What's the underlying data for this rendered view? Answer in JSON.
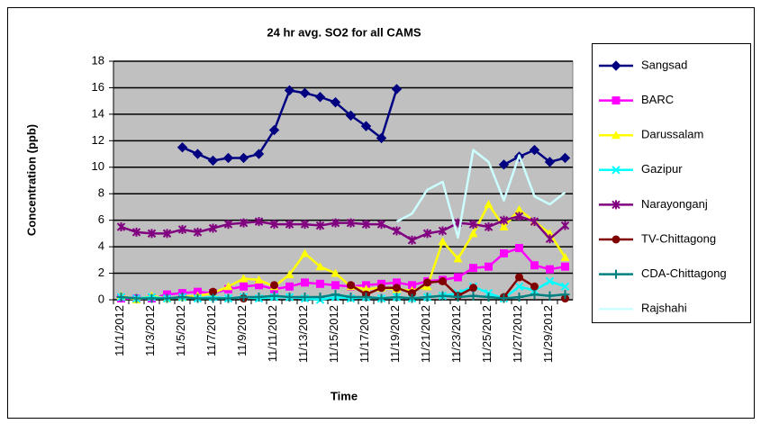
{
  "chart_data": {
    "type": "line",
    "title": "24 hr avg. SO2 for all CAMS",
    "xlabel": "Time",
    "ylabel": "Concentration (ppb)",
    "categories": [
      "11/1/2012",
      null,
      "11/3/2012",
      null,
      "11/5/2012",
      null,
      "11/7/2012",
      null,
      "11/9/2012",
      null,
      "11/11/2012",
      null,
      "11/13/2012",
      null,
      "11/15/2012",
      null,
      "11/17/2012",
      null,
      "11/19/2012",
      null,
      "11/21/2012",
      null,
      "11/23/2012",
      null,
      "11/25/2012",
      null,
      "11/27/2012",
      null,
      "11/29/2012",
      null
    ],
    "ylim": [
      0,
      18
    ],
    "yticks": [
      0,
      2,
      4,
      6,
      8,
      10,
      12,
      14,
      16,
      18
    ],
    "grid": true,
    "legend": "right",
    "series": [
      {
        "name": "Sangsad",
        "color": "#000080",
        "marker": "diamond",
        "values": [
          null,
          null,
          null,
          null,
          11.5,
          11.0,
          10.5,
          10.7,
          10.7,
          11.0,
          12.8,
          15.8,
          15.6,
          15.3,
          14.9,
          13.9,
          13.1,
          12.2,
          15.9,
          null,
          null,
          null,
          null,
          null,
          null,
          10.2,
          10.8,
          11.3,
          10.4,
          10.7
        ]
      },
      {
        "name": "BARC",
        "color": "#ff00ff",
        "marker": "square",
        "values": [
          0.1,
          0.1,
          0.1,
          0.4,
          0.5,
          0.6,
          0.5,
          0.8,
          1.0,
          1.1,
          0.8,
          1.0,
          1.3,
          1.2,
          1.1,
          1.0,
          1.1,
          1.2,
          1.3,
          1.1,
          1.4,
          1.5,
          1.7,
          2.4,
          2.5,
          3.5,
          3.9,
          2.6,
          2.3,
          2.5
        ]
      },
      {
        "name": "Darussalam",
        "color": "#ffff00",
        "marker": "triangle",
        "values": [
          0.3,
          0.0,
          0.3,
          0.1,
          0.2,
          0.3,
          0.5,
          1.0,
          1.6,
          1.5,
          1.0,
          1.9,
          3.5,
          2.5,
          2.0,
          1.0,
          0.8,
          0.9,
          0.8,
          0.7,
          1.0,
          4.4,
          3.1,
          5.0,
          7.2,
          5.5,
          6.8,
          5.9,
          5.0,
          3.2
        ]
      },
      {
        "name": "Gazipur",
        "color": "#00ffff",
        "marker": "x",
        "values": [
          0.2,
          0.1,
          0.2,
          0.1,
          0.2,
          0.1,
          0.2,
          0.1,
          0.2,
          0.1,
          0.2,
          0.2,
          0.1,
          0.0,
          0.2,
          0.1,
          0.2,
          0.1,
          0.2,
          0.1,
          0.2,
          0.3,
          0.5,
          1.0,
          0.5,
          0.1,
          1.0,
          0.7,
          1.4,
          1.0
        ]
      },
      {
        "name": "Narayonganj",
        "color": "#800080",
        "marker": "star",
        "values": [
          5.5,
          5.1,
          5.0,
          5.0,
          5.3,
          5.1,
          5.4,
          5.7,
          5.8,
          5.9,
          5.7,
          5.7,
          5.7,
          5.6,
          5.8,
          5.8,
          5.7,
          5.7,
          5.2,
          4.5,
          5.0,
          5.2,
          5.8,
          5.7,
          5.5,
          6.0,
          6.3,
          5.9,
          4.6,
          5.6
        ]
      },
      {
        "name": "TV-Chittagong",
        "color": "#800000",
        "marker": "circle",
        "values": [
          null,
          null,
          null,
          null,
          null,
          null,
          0.6,
          null,
          0.1,
          null,
          1.1,
          null,
          null,
          null,
          null,
          1.1,
          0.4,
          0.9,
          0.9,
          0.5,
          1.3,
          1.4,
          0.3,
          0.9,
          null,
          0.2,
          1.7,
          1.0,
          null,
          0.1
        ]
      },
      {
        "name": "CDA-Chittagong",
        "color": "#008080",
        "marker": "plus",
        "values": [
          0.2,
          0.1,
          0.1,
          0.1,
          0.2,
          0.1,
          0.1,
          0.1,
          0.2,
          0.2,
          0.3,
          0.2,
          0.2,
          0.2,
          0.4,
          0.2,
          0.2,
          0.1,
          0.2,
          0.1,
          0.2,
          0.3,
          0.2,
          0.3,
          0.2,
          0.1,
          0.2,
          0.4,
          0.3,
          0.4
        ]
      },
      {
        "name": "Rajshahi",
        "color": "#ccffff",
        "marker": "none",
        "values": [
          null,
          null,
          null,
          null,
          null,
          null,
          null,
          null,
          null,
          null,
          null,
          null,
          null,
          null,
          null,
          null,
          null,
          null,
          5.9,
          6.5,
          8.3,
          8.9,
          4.7,
          11.3,
          10.4,
          7.5,
          10.9,
          7.8,
          7.2,
          8.1
        ]
      }
    ]
  }
}
